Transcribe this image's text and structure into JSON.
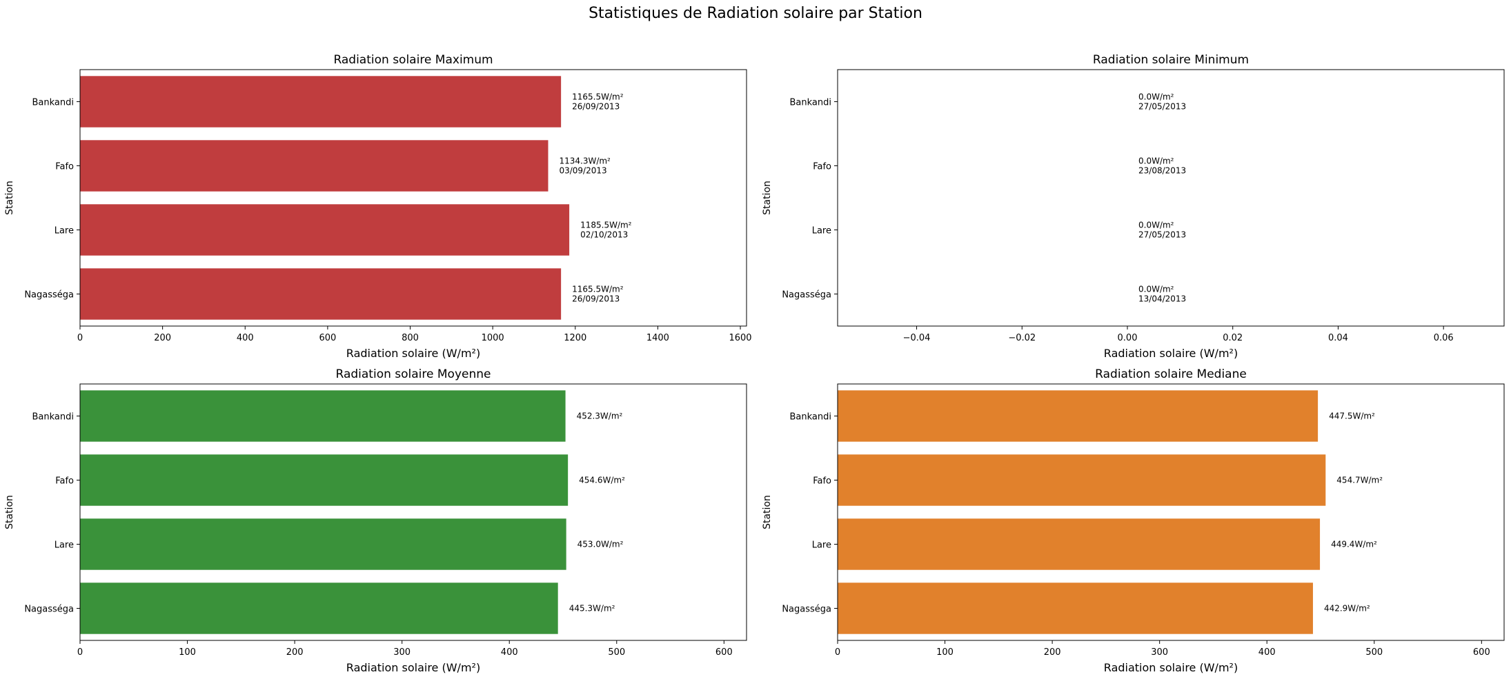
{
  "suptitle": "Statistiques de Radiation solaire par Station",
  "chart_data": [
    {
      "type": "bar",
      "orientation": "horizontal",
      "title": "Radiation solaire Maximum",
      "xlabel": "Radiation solaire (W/m²)",
      "ylabel": "Station",
      "categories": [
        "Bankandi",
        "Fafo",
        "Lare",
        "Nagasséga"
      ],
      "values": [
        1165.5,
        1134.3,
        1185.5,
        1165.5
      ],
      "bar_labels": [
        [
          "1165.5W/m²",
          "26/09/2013"
        ],
        [
          "1134.3W/m²",
          "03/09/2013"
        ],
        [
          "1185.5W/m²",
          "02/10/2013"
        ],
        [
          "1165.5W/m²",
          "26/09/2013"
        ]
      ],
      "xlim": [
        0,
        1615
      ],
      "xticks": [
        0,
        200,
        400,
        600,
        800,
        1000,
        1200,
        1400,
        1600
      ],
      "xtick_labels": [
        "0",
        "200",
        "400",
        "600",
        "800",
        "1000",
        "1200",
        "1400",
        "1600"
      ],
      "color": "#c03d3e"
    },
    {
      "type": "bar",
      "orientation": "horizontal",
      "title": "Radiation solaire Minimum",
      "xlabel": "Radiation solaire (W/m²)",
      "ylabel": "Station",
      "categories": [
        "Bankandi",
        "Fafo",
        "Lare",
        "Nagasséga"
      ],
      "values": [
        0.0,
        0.0,
        0.0,
        0.0
      ],
      "bar_labels": [
        [
          "0.0W/m²",
          "27/05/2013"
        ],
        [
          "0.0W/m²",
          "23/08/2013"
        ],
        [
          "0.0W/m²",
          "27/05/2013"
        ],
        [
          "0.0W/m²",
          "13/04/2013"
        ]
      ],
      "xlim": [
        -0.055,
        0.0715
      ],
      "xticks": [
        -0.04,
        -0.02,
        0.0,
        0.02,
        0.04,
        0.06
      ],
      "xtick_labels": [
        "−0.04",
        "−0.02",
        "0.00",
        "0.02",
        "0.04",
        "0.06"
      ],
      "color": "#3a78b0"
    },
    {
      "type": "bar",
      "orientation": "horizontal",
      "title": "Radiation solaire Moyenne",
      "xlabel": "Radiation solaire (W/m²)",
      "ylabel": "Station",
      "categories": [
        "Bankandi",
        "Fafo",
        "Lare",
        "Nagasséga"
      ],
      "values": [
        452.3,
        454.6,
        453.0,
        445.3
      ],
      "bar_labels": [
        [
          "452.3W/m²"
        ],
        [
          "454.6W/m²"
        ],
        [
          "453.0W/m²"
        ],
        [
          "445.3W/m²"
        ]
      ],
      "xlim": [
        0,
        621
      ],
      "xticks": [
        0,
        100,
        200,
        300,
        400,
        500,
        600
      ],
      "xtick_labels": [
        "0",
        "100",
        "200",
        "300",
        "400",
        "500",
        "600"
      ],
      "color": "#3a923a"
    },
    {
      "type": "bar",
      "orientation": "horizontal",
      "title": "Radiation solaire Mediane",
      "xlabel": "Radiation solaire (W/m²)",
      "ylabel": "Station",
      "categories": [
        "Bankandi",
        "Fafo",
        "Lare",
        "Nagasséga"
      ],
      "values": [
        447.5,
        454.7,
        449.4,
        442.9
      ],
      "bar_labels": [
        [
          "447.5W/m²"
        ],
        [
          "454.7W/m²"
        ],
        [
          "449.4W/m²"
        ],
        [
          "442.9W/m²"
        ]
      ],
      "xlim": [
        0,
        621
      ],
      "xticks": [
        0,
        100,
        200,
        300,
        400,
        500,
        600
      ],
      "xtick_labels": [
        "0",
        "100",
        "200",
        "300",
        "400",
        "500",
        "600"
      ],
      "color": "#e1812c"
    }
  ]
}
